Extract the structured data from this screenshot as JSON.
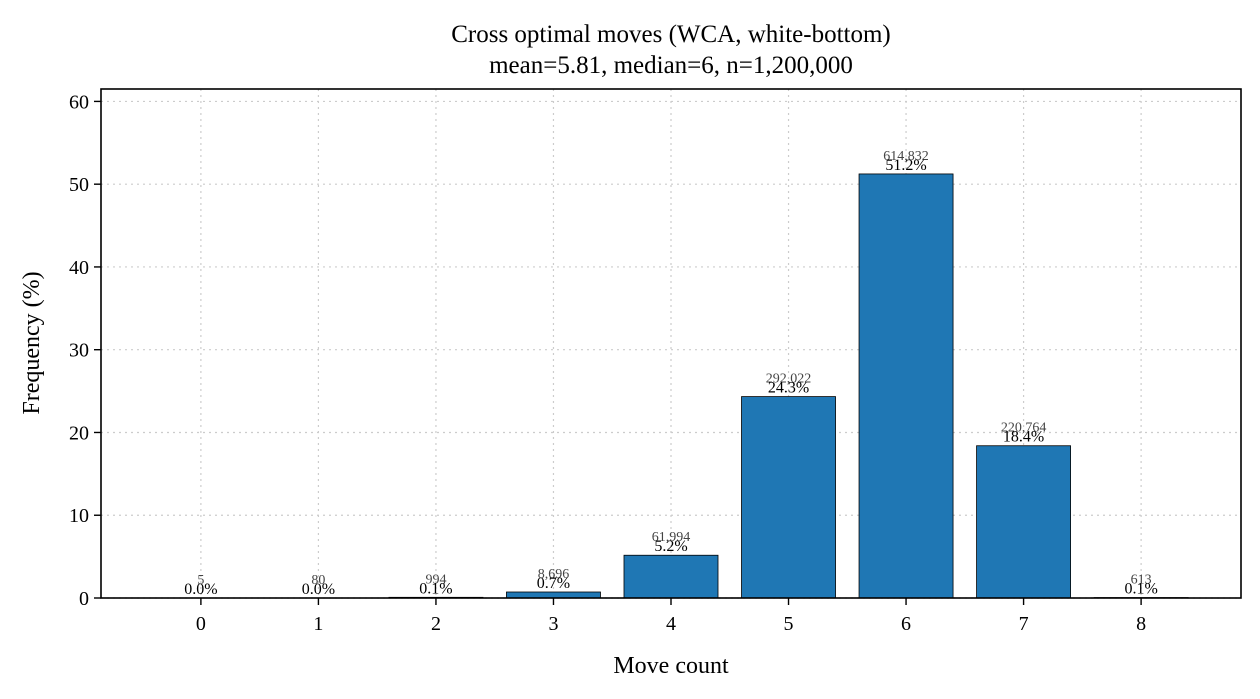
{
  "chart_data": {
    "type": "bar",
    "title": "Cross optimal moves (WCA, white-bottom)",
    "subtitle": "mean=5.81, median=6, n=1,200,000",
    "xlabel": "Move count",
    "ylabel": "Frequency (%)",
    "categories": [
      "0",
      "1",
      "2",
      "3",
      "4",
      "5",
      "6",
      "7",
      "8"
    ],
    "values": [
      0.0004,
      0.0067,
      0.0828,
      0.7247,
      5.1662,
      24.3352,
      51.236,
      18.397,
      0.0511
    ],
    "counts": [
      "5",
      "80",
      "994",
      "8,696",
      "61,994",
      "292,022",
      "614,832",
      "220,764",
      "613"
    ],
    "pct_labels": [
      "0.0%",
      "0.0%",
      "0.1%",
      "0.7%",
      "5.2%",
      "24.3%",
      "51.2%",
      "18.4%",
      "0.1%"
    ],
    "yticks": [
      "0",
      "10",
      "20",
      "30",
      "40",
      "50",
      "60"
    ],
    "ylim": [
      0,
      61.5
    ],
    "xlim": [
      -0.85,
      8.85
    ],
    "grid": true,
    "bar_color": "#1f77b4"
  }
}
